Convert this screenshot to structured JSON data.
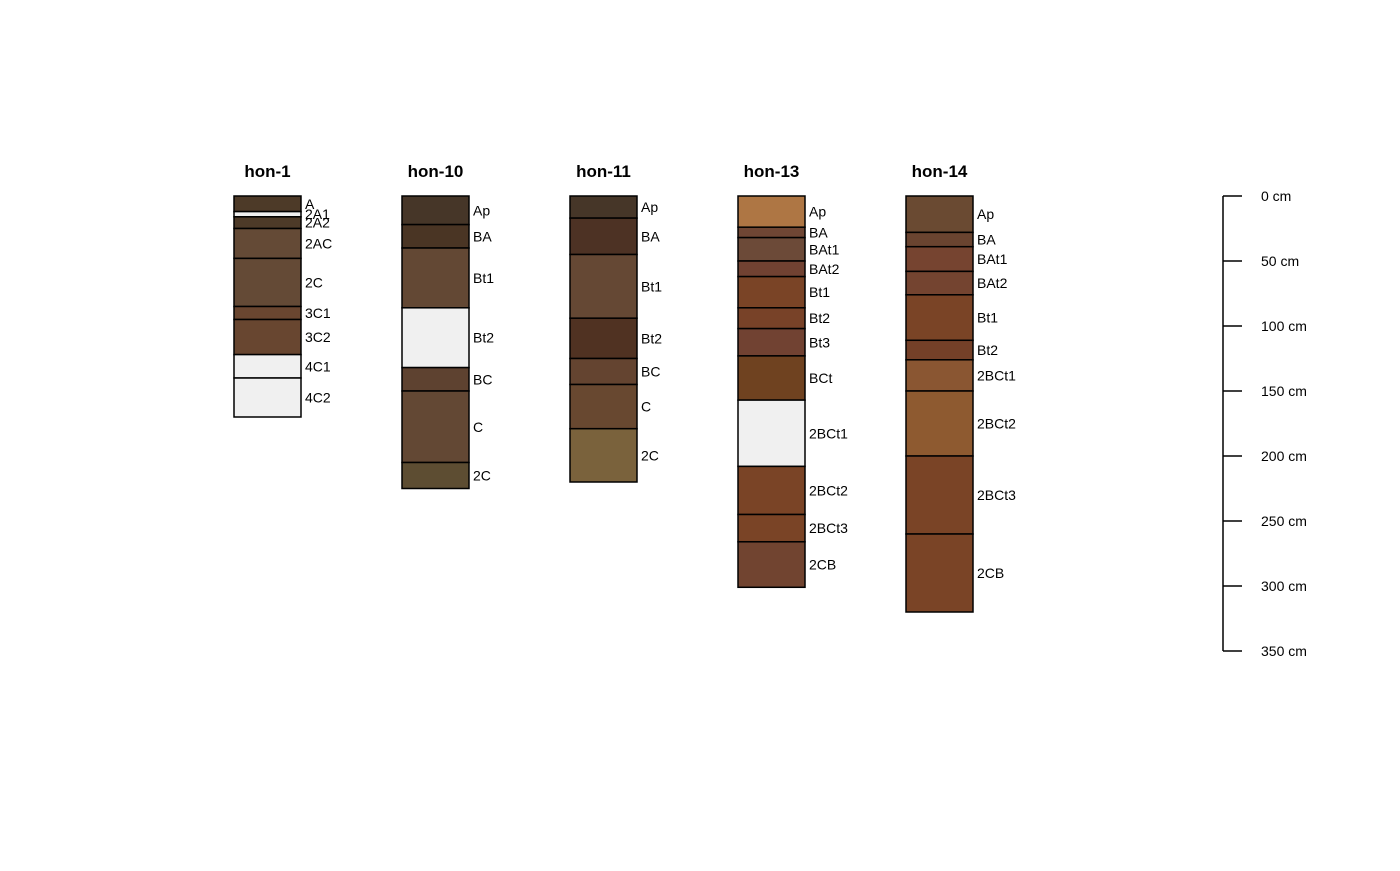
{
  "chart_data": {
    "type": "soil-profile",
    "depth_unit": "cm",
    "depth_axis": {
      "ticks": [
        0,
        50,
        100,
        150,
        200,
        250,
        300,
        350
      ],
      "tick_labels": [
        "0 cm",
        "50 cm",
        "100 cm",
        "150 cm",
        "200 cm",
        "250 cm",
        "300 cm",
        "350 cm"
      ],
      "position": "right"
    },
    "profiles": [
      {
        "id": "hon-1",
        "horizons": [
          {
            "name": "A",
            "top": 0,
            "bottom": 12,
            "color": "#4d3a28"
          },
          {
            "name": "2A1",
            "top": 12,
            "bottom": 16,
            "color": "#f0f0f0"
          },
          {
            "name": "2A2",
            "top": 16,
            "bottom": 25,
            "color": "#4d3a28"
          },
          {
            "name": "2AC",
            "top": 25,
            "bottom": 48,
            "color": "#644a36"
          },
          {
            "name": "2C",
            "top": 48,
            "bottom": 85,
            "color": "#644a36"
          },
          {
            "name": "3C1",
            "top": 85,
            "bottom": 95,
            "color": "#6a4630"
          },
          {
            "name": "3C2",
            "top": 95,
            "bottom": 122,
            "color": "#684630"
          },
          {
            "name": "4C1",
            "top": 122,
            "bottom": 140,
            "color": "#f0f0f0"
          },
          {
            "name": "4C2",
            "top": 140,
            "bottom": 170,
            "color": "#f0f0f0"
          }
        ]
      },
      {
        "id": "hon-10",
        "horizons": [
          {
            "name": "Ap",
            "top": 0,
            "bottom": 22,
            "color": "#463628"
          },
          {
            "name": "BA",
            "top": 22,
            "bottom": 40,
            "color": "#4a3524"
          },
          {
            "name": "Bt1",
            "top": 40,
            "bottom": 86,
            "color": "#634834"
          },
          {
            "name": "Bt2",
            "top": 86,
            "bottom": 132,
            "color": "#f0f0f0"
          },
          {
            "name": "BC",
            "top": 132,
            "bottom": 150,
            "color": "#5e4230"
          },
          {
            "name": "C",
            "top": 150,
            "bottom": 205,
            "color": "#634834"
          },
          {
            "name": "2C",
            "top": 205,
            "bottom": 225,
            "color": "#5d4d32"
          }
        ]
      },
      {
        "id": "hon-11",
        "horizons": [
          {
            "name": "Ap",
            "top": 0,
            "bottom": 17,
            "color": "#463628"
          },
          {
            "name": "BA",
            "top": 17,
            "bottom": 45,
            "color": "#4d3224"
          },
          {
            "name": "Bt1",
            "top": 45,
            "bottom": 94,
            "color": "#654834"
          },
          {
            "name": "Bt2",
            "top": 94,
            "bottom": 125,
            "color": "#503222"
          },
          {
            "name": "BC",
            "top": 125,
            "bottom": 145,
            "color": "#644430"
          },
          {
            "name": "C",
            "top": 145,
            "bottom": 179,
            "color": "#684830"
          },
          {
            "name": "2C",
            "top": 179,
            "bottom": 220,
            "color": "#7a623c"
          }
        ]
      },
      {
        "id": "hon-13",
        "horizons": [
          {
            "name": "Ap",
            "top": 0,
            "bottom": 24,
            "color": "#ae7644"
          },
          {
            "name": "BA",
            "top": 24,
            "bottom": 32,
            "color": "#6f4634"
          },
          {
            "name": "BAt1",
            "top": 32,
            "bottom": 50,
            "color": "#6c4a38"
          },
          {
            "name": "BAt2",
            "top": 50,
            "bottom": 62,
            "color": "#714232"
          },
          {
            "name": "Bt1",
            "top": 62,
            "bottom": 86,
            "color": "#7a4426"
          },
          {
            "name": "Bt2",
            "top": 86,
            "bottom": 102,
            "color": "#784228"
          },
          {
            "name": "Bt3",
            "top": 102,
            "bottom": 123,
            "color": "#714232"
          },
          {
            "name": "BCt",
            "top": 123,
            "bottom": 157,
            "color": "#6f4220"
          },
          {
            "name": "2BCt1",
            "top": 157,
            "bottom": 208,
            "color": "#f0f0f0"
          },
          {
            "name": "2BCt2",
            "top": 208,
            "bottom": 245,
            "color": "#7a4426"
          },
          {
            "name": "2BCt3",
            "top": 245,
            "bottom": 266,
            "color": "#7a4426"
          },
          {
            "name": "2CB",
            "top": 266,
            "bottom": 301,
            "color": "#714430"
          }
        ]
      },
      {
        "id": "hon-14",
        "horizons": [
          {
            "name": "Ap",
            "top": 0,
            "bottom": 28,
            "color": "#6a4a32"
          },
          {
            "name": "BA",
            "top": 28,
            "bottom": 39,
            "color": "#6a4430"
          },
          {
            "name": "BAt1",
            "top": 39,
            "bottom": 58,
            "color": "#764430"
          },
          {
            "name": "BAt2",
            "top": 58,
            "bottom": 76,
            "color": "#744430"
          },
          {
            "name": "Bt1",
            "top": 76,
            "bottom": 111,
            "color": "#7a4426"
          },
          {
            "name": "Bt2",
            "top": 111,
            "bottom": 126,
            "color": "#744028"
          },
          {
            "name": "2BCt1",
            "top": 126,
            "bottom": 150,
            "color": "#8a5632"
          },
          {
            "name": "2BCt2",
            "top": 150,
            "bottom": 200,
            "color": "#8e5a30"
          },
          {
            "name": "2BCt3",
            "top": 200,
            "bottom": 260,
            "color": "#7a4426"
          },
          {
            "name": "2CB",
            "top": 260,
            "bottom": 320,
            "color": "#7a4426"
          }
        ]
      }
    ]
  }
}
